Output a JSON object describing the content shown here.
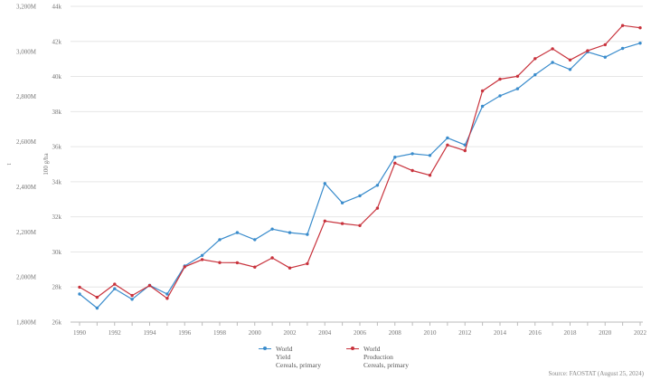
{
  "chart_data": {
    "type": "line",
    "title": "",
    "x": [
      1990,
      1991,
      1992,
      1993,
      1994,
      1995,
      1996,
      1997,
      1998,
      1999,
      2000,
      2001,
      2002,
      2003,
      2004,
      2005,
      2006,
      2007,
      2008,
      2009,
      2010,
      2011,
      2012,
      2013,
      2014,
      2015,
      2016,
      2017,
      2018,
      2019,
      2020,
      2021,
      2022
    ],
    "x_ticks": [
      "1990",
      "1992",
      "1994",
      "1996",
      "1998",
      "2000",
      "2002",
      "2004",
      "2006",
      "2008",
      "2010",
      "2012",
      "2014",
      "2016",
      "2018",
      "2020",
      "2022"
    ],
    "xlim": [
      1990,
      2022
    ],
    "y_left": {
      "label": "t",
      "ticks": [
        "1,800M",
        "2,000M",
        "2,200M",
        "2,400M",
        "2,600M",
        "2,800M",
        "3,000M",
        "3,200M"
      ],
      "lim": [
        1800,
        3200
      ],
      "unit": "M"
    },
    "y_right": {
      "label": "100 g/ha",
      "ticks": [
        "26k",
        "28k",
        "30k",
        "32k",
        "34k",
        "36k",
        "38k",
        "40k",
        "42k",
        "44k"
      ],
      "lim": [
        26000,
        44000
      ]
    },
    "grid": true,
    "legend_position": "bottom-center",
    "series": [
      {
        "name": "World Yield Cereals, primary",
        "legend_lines": [
          "World",
          "Yield",
          "Cereals, primary"
        ],
        "axis": "right",
        "color": "#3a8ccc",
        "values": [
          27600,
          26800,
          27900,
          27300,
          28100,
          27600,
          29200,
          29800,
          30700,
          31100,
          30700,
          31300,
          31100,
          31000,
          33900,
          32800,
          33200,
          33800,
          35400,
          35600,
          35500,
          36500,
          36100,
          38300,
          38900,
          39300,
          40100,
          40800,
          40400,
          41400,
          41100,
          41600,
          41900
        ]
      },
      {
        "name": "World Production Cereals, primary",
        "legend_lines": [
          "World",
          "Production",
          "Cereals, primary"
        ],
        "axis": "left",
        "color": "#c8323c",
        "values": [
          1955,
          1910,
          1968,
          1918,
          1962,
          1905,
          2045,
          2077,
          2064,
          2063,
          2044,
          2085,
          2040,
          2059,
          2248,
          2237,
          2228,
          2305,
          2505,
          2472,
          2451,
          2585,
          2560,
          2825,
          2877,
          2890,
          2968,
          3012,
          2962,
          3003,
          3030,
          3115,
          3105
        ]
      }
    ]
  },
  "source": "Source: FAOSTAT (August 25, 2024)"
}
